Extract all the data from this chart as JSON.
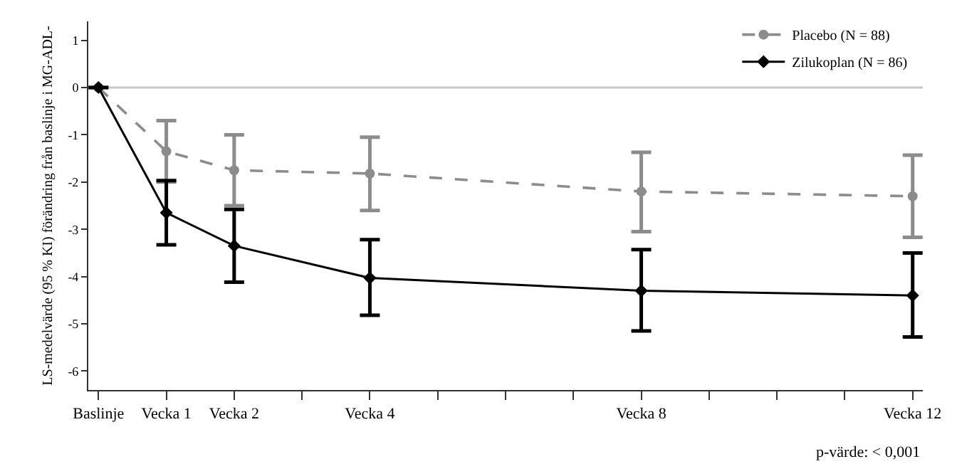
{
  "chart_data": {
    "type": "line",
    "ylabel": "LS-medelvärde (95 % KI) förändring från baslinje i MG-ADL-",
    "categories": [
      "Baslinje",
      "Vecka 1",
      "Vecka 2",
      null,
      "Vecka 4",
      null,
      null,
      null,
      "Vecka 8",
      null,
      null,
      null,
      "Vecka 12"
    ],
    "ylim": [
      -6.4,
      1.4
    ],
    "yticks": [
      1,
      0,
      -1,
      -2,
      -3,
      -4,
      -5,
      -6
    ],
    "series": [
      {
        "name": "Placebo (N = 88)",
        "color": "#8c8c8c",
        "marker": "circle",
        "line_style": "dashed",
        "values": [
          0,
          -1.35,
          -1.75,
          null,
          -1.82,
          null,
          null,
          null,
          -2.2,
          null,
          null,
          null,
          -2.3
        ],
        "errors": [
          null,
          [
            -2.0,
            -0.7
          ],
          [
            -2.5,
            -1.0
          ],
          null,
          [
            -2.6,
            -1.05
          ],
          null,
          null,
          null,
          [
            -3.05,
            -1.37
          ],
          null,
          null,
          null,
          [
            -3.17,
            -1.43
          ]
        ]
      },
      {
        "name": "Zilukoplan (N = 86)",
        "color": "#000000",
        "marker": "diamond",
        "line_style": "solid",
        "values": [
          0,
          -2.65,
          -3.35,
          null,
          -4.03,
          null,
          null,
          null,
          -4.3,
          null,
          null,
          null,
          -4.4
        ],
        "errors": [
          null,
          [
            -3.33,
            -1.97
          ],
          [
            -4.12,
            -2.58
          ],
          null,
          [
            -4.82,
            -3.22
          ],
          null,
          null,
          null,
          [
            -5.15,
            -3.43
          ],
          null,
          null,
          null,
          [
            -5.28,
            -3.5
          ]
        ]
      }
    ],
    "ref_lines": [
      {
        "axis": "y",
        "value": 0,
        "color": "#c8c8c8"
      }
    ],
    "annotations": [
      "p-värde: < 0,001"
    ],
    "legend": "top right",
    "grid": false
  }
}
